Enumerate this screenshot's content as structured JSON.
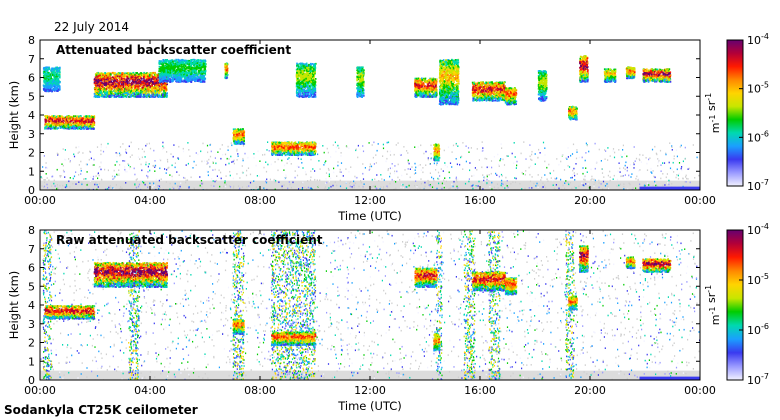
{
  "header": {
    "date": "22 July 2014",
    "footer": "Sodankyla CT25K ceilometer"
  },
  "colorbar": {
    "scale": "log",
    "range": [
      1e-07,
      0.0001
    ],
    "unit_label": "m-1 sr-1",
    "tick_labels": [
      "10-7",
      "10-6",
      "10-5",
      "10-4"
    ],
    "colors": [
      "#f2f2ff",
      "#9a9aff",
      "#3a3af0",
      "#1aa0ff",
      "#00d9b0",
      "#00cc00",
      "#c8e600",
      "#ffd400",
      "#ff8800",
      "#ff1a00",
      "#b30038",
      "#660070"
    ]
  },
  "chart_data": [
    {
      "type": "heatmap",
      "title": "Attenuated backscatter coefficient",
      "xlabel": "Time (UTC)",
      "ylabel": "Height (km)",
      "xlim": [
        "00:00",
        "24:00"
      ],
      "ylim": [
        0,
        8
      ],
      "x_ticks": [
        "00:00",
        "04:00",
        "08:00",
        "12:00",
        "16:00",
        "20:00",
        "00:00"
      ],
      "y_ticks": [
        0,
        1,
        2,
        3,
        4,
        5,
        6,
        7,
        8
      ],
      "value_range": [
        1e-07,
        0.0001
      ],
      "value_scale": "log",
      "noise_density": 0.55,
      "background_band": {
        "height_km": 0.5,
        "value": 1e-07
      },
      "layers": [
        {
          "t0": 0.1,
          "t1": 0.7,
          "h0": 5.3,
          "h1": 6.6,
          "peak": 2e-06
        },
        {
          "t0": 0.15,
          "t1": 1.95,
          "h0": 3.3,
          "h1": 4.0,
          "peak": 5e-05
        },
        {
          "t0": 1.95,
          "t1": 4.6,
          "h0": 5.0,
          "h1": 6.3,
          "peak": 8e-05
        },
        {
          "t0": 4.3,
          "t1": 6.0,
          "h0": 5.8,
          "h1": 7.0,
          "peak": 3e-06
        },
        {
          "t0": 6.7,
          "t1": 6.8,
          "h0": 6.0,
          "h1": 6.8,
          "peak": 2e-05
        },
        {
          "t0": 7.0,
          "t1": 7.4,
          "h0": 2.5,
          "h1": 3.3,
          "peak": 2e-05
        },
        {
          "t0": 8.4,
          "t1": 10.0,
          "h0": 1.9,
          "h1": 2.6,
          "peak": 3e-05
        },
        {
          "t0": 9.3,
          "t1": 10.0,
          "h0": 5.0,
          "h1": 6.8,
          "peak": 5e-06
        },
        {
          "t0": 11.5,
          "t1": 11.75,
          "h0": 5.0,
          "h1": 6.6,
          "peak": 5e-06
        },
        {
          "t0": 13.6,
          "t1": 14.4,
          "h0": 5.0,
          "h1": 6.0,
          "peak": 4e-05
        },
        {
          "t0": 14.3,
          "t1": 14.5,
          "h0": 1.6,
          "h1": 2.5,
          "peak": 2e-05
        },
        {
          "t0": 14.5,
          "t1": 15.2,
          "h0": 4.6,
          "h1": 7.0,
          "peak": 1e-05
        },
        {
          "t0": 15.7,
          "t1": 16.9,
          "h0": 4.8,
          "h1": 5.8,
          "peak": 5e-05
        },
        {
          "t0": 16.9,
          "t1": 17.3,
          "h0": 4.6,
          "h1": 5.5,
          "peak": 3e-05
        },
        {
          "t0": 18.1,
          "t1": 18.4,
          "h0": 4.8,
          "h1": 6.4,
          "peak": 5e-06
        },
        {
          "t0": 19.2,
          "t1": 19.5,
          "h0": 3.8,
          "h1": 4.5,
          "peak": 2e-05
        },
        {
          "t0": 19.6,
          "t1": 19.9,
          "h0": 5.8,
          "h1": 7.2,
          "peak": 6e-05
        },
        {
          "t0": 20.5,
          "t1": 20.9,
          "h0": 5.8,
          "h1": 6.5,
          "peak": 1e-05
        },
        {
          "t0": 21.3,
          "t1": 21.6,
          "h0": 6.0,
          "h1": 6.6,
          "peak": 2e-05
        },
        {
          "t0": 21.9,
          "t1": 22.9,
          "h0": 5.8,
          "h1": 6.5,
          "peak": 7e-05
        }
      ]
    },
    {
      "type": "heatmap",
      "title": "Raw attenuated backscatter coefficient",
      "xlabel": "Time (UTC)",
      "ylabel": "Height (km)",
      "xlim": [
        "00:00",
        "24:00"
      ],
      "ylim": [
        0,
        8
      ],
      "x_ticks": [
        "00:00",
        "04:00",
        "08:00",
        "12:00",
        "16:00",
        "20:00",
        "00:00"
      ],
      "y_ticks": [
        0,
        1,
        2,
        3,
        4,
        5,
        6,
        7,
        8
      ],
      "value_range": [
        1e-07,
        0.0001
      ],
      "value_scale": "log",
      "noise_density": 0.95,
      "background_band": {
        "height_km": 0.5,
        "value": 1e-07
      },
      "dense_columns": [
        {
          "t0": 0.1,
          "t1": 0.4
        },
        {
          "t0": 3.2,
          "t1": 3.6
        },
        {
          "t0": 7.0,
          "t1": 7.4
        },
        {
          "t0": 8.4,
          "t1": 10.0
        },
        {
          "t0": 14.4,
          "t1": 14.6
        },
        {
          "t0": 15.4,
          "t1": 15.8
        },
        {
          "t0": 16.3,
          "t1": 16.7
        },
        {
          "t0": 19.1,
          "t1": 19.4
        }
      ],
      "layers": [
        {
          "t0": 0.15,
          "t1": 1.95,
          "h0": 3.3,
          "h1": 4.0,
          "peak": 5e-05
        },
        {
          "t0": 1.95,
          "t1": 4.6,
          "h0": 5.0,
          "h1": 6.3,
          "peak": 8e-05
        },
        {
          "t0": 7.0,
          "t1": 7.4,
          "h0": 2.5,
          "h1": 3.3,
          "peak": 2e-05
        },
        {
          "t0": 8.4,
          "t1": 10.0,
          "h0": 1.9,
          "h1": 2.6,
          "peak": 3e-05
        },
        {
          "t0": 13.6,
          "t1": 14.4,
          "h0": 5.0,
          "h1": 6.0,
          "peak": 4e-05
        },
        {
          "t0": 14.3,
          "t1": 14.5,
          "h0": 1.6,
          "h1": 2.5,
          "peak": 2e-05
        },
        {
          "t0": 15.7,
          "t1": 16.9,
          "h0": 4.8,
          "h1": 5.8,
          "peak": 5e-05
        },
        {
          "t0": 16.9,
          "t1": 17.3,
          "h0": 4.6,
          "h1": 5.5,
          "peak": 3e-05
        },
        {
          "t0": 19.2,
          "t1": 19.5,
          "h0": 3.8,
          "h1": 4.5,
          "peak": 2e-05
        },
        {
          "t0": 19.6,
          "t1": 19.9,
          "h0": 5.8,
          "h1": 7.2,
          "peak": 6e-05
        },
        {
          "t0": 21.3,
          "t1": 21.6,
          "h0": 6.0,
          "h1": 6.6,
          "peak": 2e-05
        },
        {
          "t0": 21.9,
          "t1": 22.9,
          "h0": 5.8,
          "h1": 6.5,
          "peak": 7e-05
        }
      ]
    }
  ]
}
